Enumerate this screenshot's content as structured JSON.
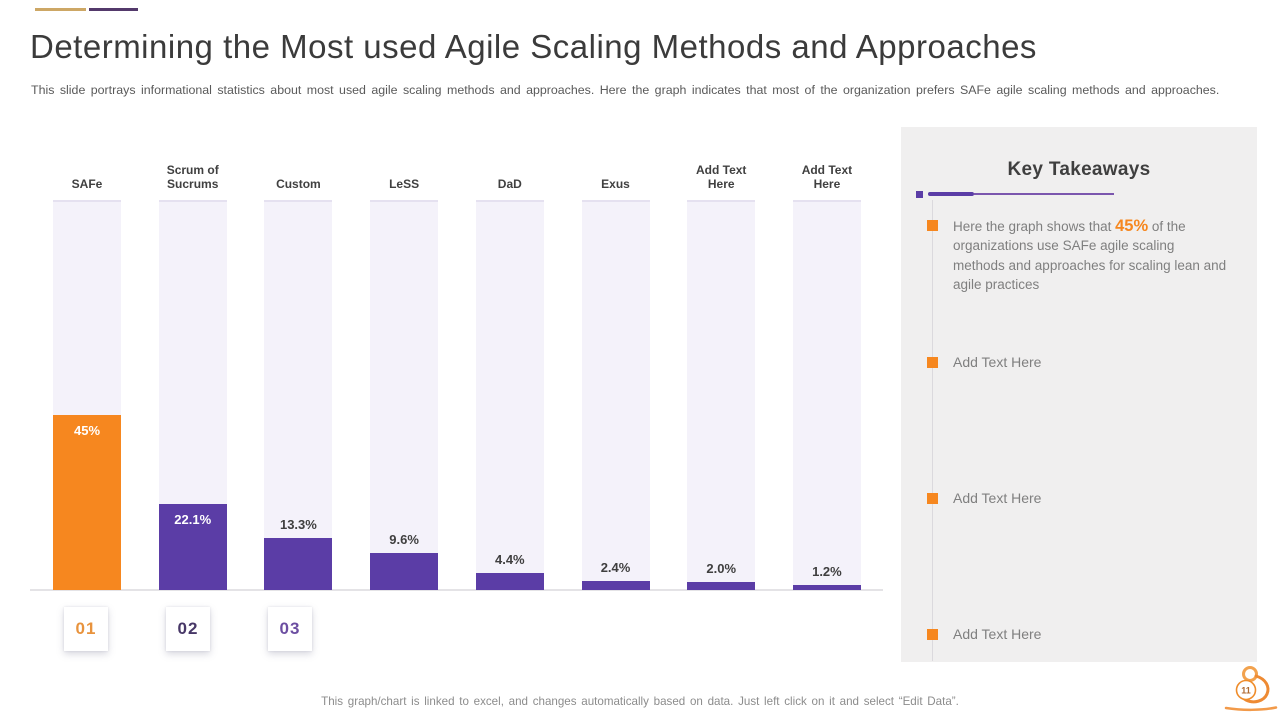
{
  "slide": {
    "title": "Determining the Most used Agile Scaling Methods and Approaches",
    "subtitle": "This slide portrays informational statistics about most used agile scaling methods and approaches. Here the graph indicates that most of the organization prefers SAFe agile scaling methods and approaches.",
    "footer": "This graph/chart is linked to excel, and changes automatically based on data. Just left click on it and select “Edit Data”.",
    "page_number": "11"
  },
  "chart_data": {
    "type": "bar",
    "title": "",
    "xlabel": "",
    "ylabel": "",
    "categories": [
      "SAFe",
      "Scrum of\nSucrums",
      "Custom",
      "LeSS",
      "DaD",
      "Exus",
      "Add Text Here",
      "Add Text Here"
    ],
    "values": [
      45,
      22.1,
      13.3,
      9.6,
      4.4,
      2.4,
      2.0,
      1.2
    ],
    "labels": [
      "45%",
      "22.1%",
      "13.3%",
      "9.6%",
      "4.4%",
      "2.4%",
      "2.0%",
      "1.2%"
    ],
    "ylim": [
      0,
      100
    ],
    "grid": false,
    "legend": "none",
    "highlight_index": 0,
    "label_inside_threshold": 20,
    "colors": {
      "highlight_bar": "#F6871F",
      "bar": "#5B3DA6",
      "track": "#F4F2FA"
    }
  },
  "takeaways": {
    "title": "Key Takeaways",
    "bullet1": {
      "pre": "Here the graph shows that ",
      "highlight": "45%",
      "post": " of the organizations use SAFe agile scaling methods and approaches for scaling lean and agile practices"
    },
    "bullet2": "Add Text Here",
    "bullet3": "Add Text Here",
    "bullet4": "Add Text Here"
  },
  "badges": [
    {
      "label": "01",
      "color": "#E8933D"
    },
    {
      "label": "02",
      "color": "#473767"
    },
    {
      "label": "03",
      "color": "#6C4EA1"
    }
  ],
  "colors": {
    "accent_orange": "#F6871F",
    "accent_purple": "#5B3DA6",
    "accent_tan_line": "#CDA765",
    "accent_dark_purple_line": "#53396B",
    "panel_background": "#F0EFEF",
    "takeaway_text": "#7F7F7F",
    "title_text": "#3B3B3B"
  }
}
